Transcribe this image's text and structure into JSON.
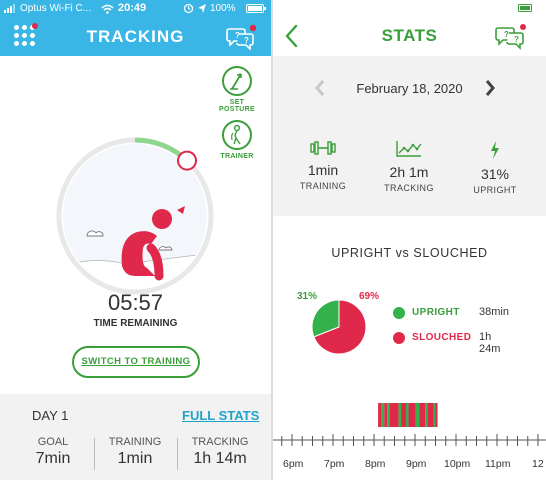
{
  "left": {
    "statusbar": {
      "carrier": "Optus Wi-Fi C...",
      "time": "20:49",
      "battery": "100%"
    },
    "header": {
      "title": "TRACKING"
    },
    "side_buttons": {
      "set_posture": "SET POSTURE",
      "trainer": "TRAINER"
    },
    "timer": {
      "value": "05:57",
      "label": "TIME REMAINING",
      "progress": 0.12
    },
    "switch_button": "SWITCH TO TRAINING",
    "day": {
      "title": "DAY 1",
      "full_stats": "FULL STATS",
      "stats": [
        {
          "label": "GOAL",
          "value": "7min"
        },
        {
          "label": "TRAINING",
          "value": "1min"
        },
        {
          "label": "TRACKING",
          "value": "1h 14m"
        }
      ]
    }
  },
  "right": {
    "header": {
      "title": "STATS"
    },
    "date": "February 18, 2020",
    "summary": [
      {
        "icon": "dumbbell-icon",
        "value": "1min",
        "label": "TRAINING"
      },
      {
        "icon": "line-graph-icon",
        "value": "2h 1m",
        "label": "TRACKING"
      },
      {
        "icon": "lightning-icon",
        "value": "31%",
        "label": "UPRIGHT"
      }
    ],
    "breakdown_title": "UPRIGHT vs SLOUCHED",
    "chart_data": {
      "type": "pie",
      "slices": [
        {
          "name": "UPRIGHT",
          "value": 31,
          "color": "#33b14a",
          "pct_label": "31%",
          "duration": "38min"
        },
        {
          "name": "SLOUCHED",
          "value": 69,
          "color": "#e0294a",
          "pct_label": "69%",
          "duration": "1h 24m"
        }
      ]
    },
    "timeline": {
      "tick_labels": [
        "6pm",
        "7pm",
        "8pm",
        "9pm",
        "10pm",
        "11pm",
        "12"
      ],
      "start_hour": 18,
      "end_hour": 24,
      "segments": [
        {
          "state": "slouched",
          "from": 20.1,
          "to": 20.18
        },
        {
          "state": "upright",
          "from": 20.18,
          "to": 20.25
        },
        {
          "state": "slouched",
          "from": 20.25,
          "to": 20.32
        },
        {
          "state": "upright",
          "from": 20.32,
          "to": 20.38
        },
        {
          "state": "slouched",
          "from": 20.38,
          "to": 20.6
        },
        {
          "state": "upright",
          "from": 20.6,
          "to": 20.66
        },
        {
          "state": "slouched",
          "from": 20.66,
          "to": 20.78
        },
        {
          "state": "upright",
          "from": 20.78,
          "to": 20.84
        },
        {
          "state": "slouched",
          "from": 20.84,
          "to": 21.02
        },
        {
          "state": "upright",
          "from": 21.02,
          "to": 21.1
        },
        {
          "state": "slouched",
          "from": 21.1,
          "to": 21.25
        },
        {
          "state": "upright",
          "from": 21.25,
          "to": 21.3
        },
        {
          "state": "slouched",
          "from": 21.3,
          "to": 21.45
        },
        {
          "state": "upright",
          "from": 21.45,
          "to": 21.5
        },
        {
          "state": "slouched",
          "from": 21.5,
          "to": 21.55
        }
      ]
    }
  },
  "colors": {
    "header_blue": "#3ab6e6",
    "green": "#3a9e3a",
    "red": "#e0294a",
    "link_blue": "#1fa3c9"
  }
}
